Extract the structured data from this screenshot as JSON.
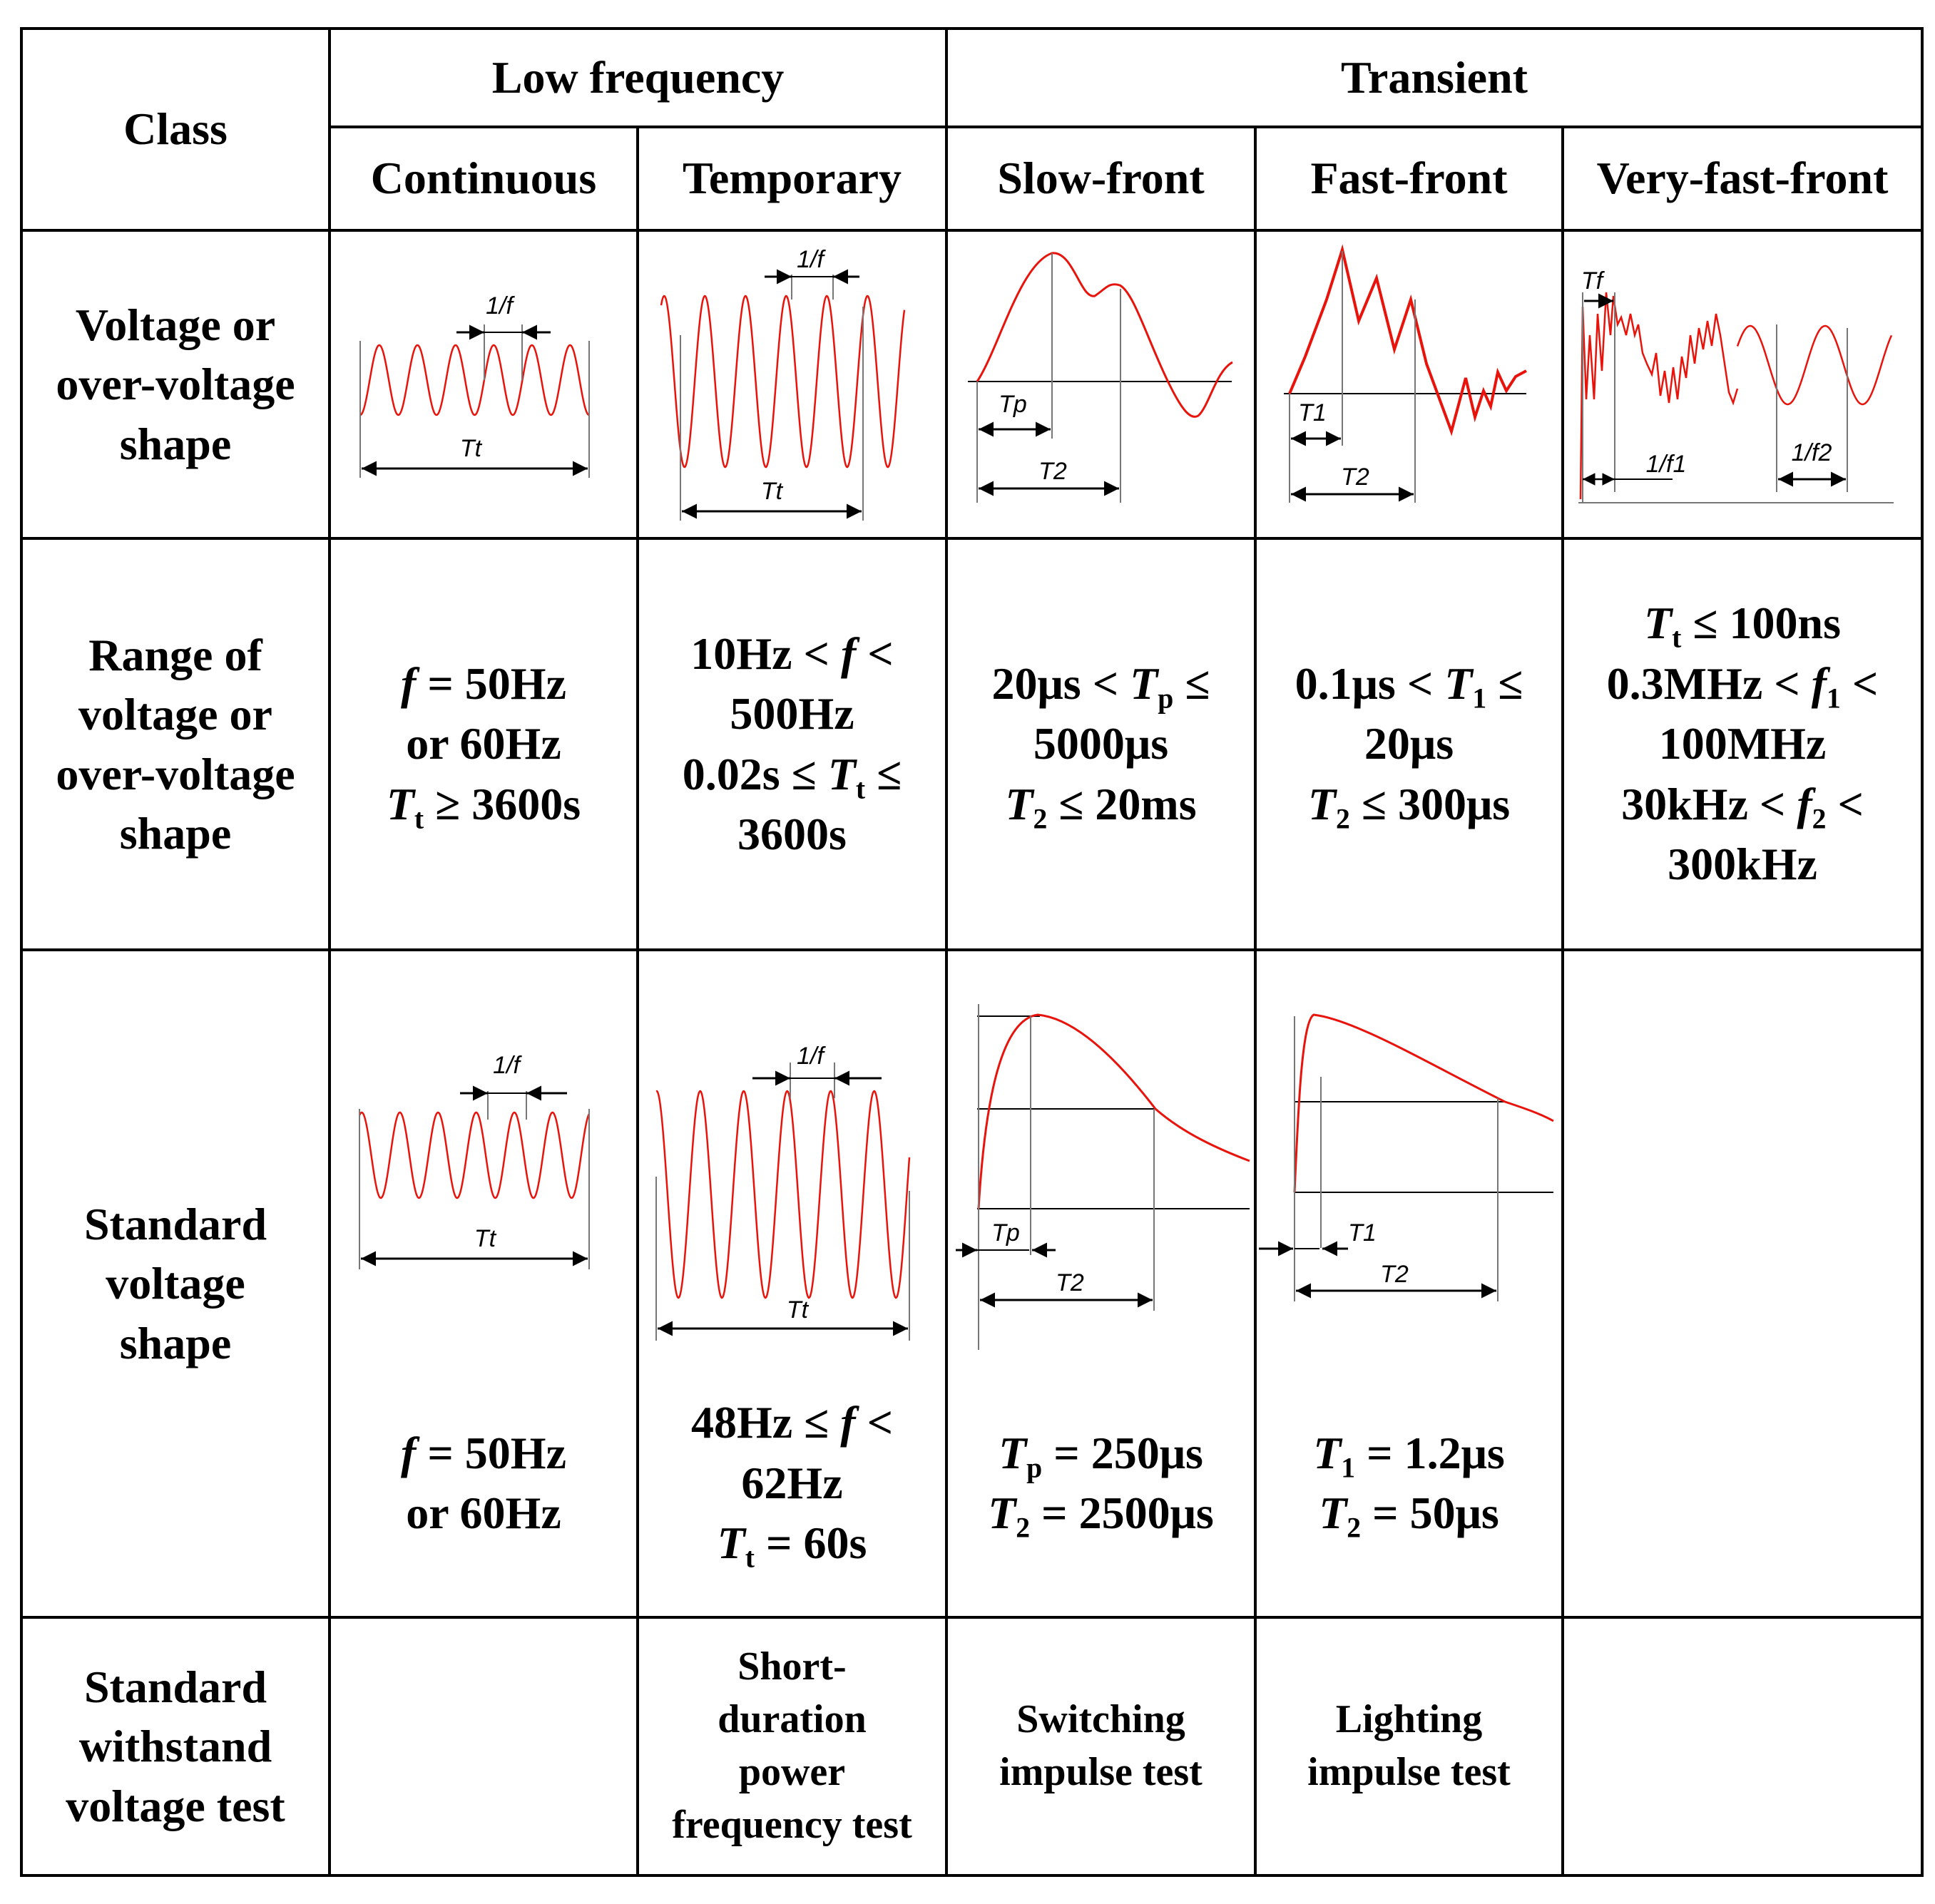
{
  "header": {
    "class": "Class",
    "low_frequency": "Low frequency",
    "transient": "Transient",
    "continuous": "Continuous",
    "temporary": "Temporary",
    "slow_front": "Slow-front",
    "fast_front": "Fast-front",
    "very_fast_front": "Very-fast-front"
  },
  "rows": {
    "voltage_shape": [
      "Voltage or",
      "over-voltage",
      "shape"
    ],
    "range_shape": [
      "Range of",
      "voltage or",
      "over-voltage",
      "shape"
    ],
    "standard_shape": [
      "Standard",
      "voltage",
      "shape"
    ],
    "standard_test": [
      "Standard",
      "withstand",
      "voltage test"
    ]
  },
  "labels": {
    "one_over_f": "1/f",
    "Tt": "Tt",
    "Tp": "Tp",
    "T1": "T1",
    "T2": "T2",
    "Tf": "Tf",
    "one_over_f1": "1/f1",
    "one_over_f2": "1/f2"
  },
  "ranges": {
    "continuous": {
      "f": "f",
      "f_rest": " = 50Hz",
      "alt": "or 60Hz",
      "T": "T",
      "t": "t",
      "t_rest": " ≥ 3600s"
    },
    "temporary": {
      "l1a": "10Hz < ",
      "f": "f",
      "l1b": " <",
      "l2": "500Hz",
      "l3a": "0.02s ≤ ",
      "T": "T",
      "t": "t",
      "l3b": " ≤",
      "l4": "3600s"
    },
    "slow_front": {
      "l1a": "20μs < ",
      "T": "T",
      "p": "p",
      "l1b": " ≤",
      "l2": "5000μs",
      "T2": "T",
      "two": "2",
      "l3b": " ≤ 20ms"
    },
    "fast_front": {
      "l1a": "0.1μs  < ",
      "T": "T",
      "one": "1",
      "l1b": " ≤",
      "l2": "20μs",
      "T2": "T",
      "two": "2",
      "l3b": " ≤ 300μs"
    },
    "very_fast_front": {
      "T": "T",
      "t": "t",
      "l1b": " ≤ 100ns",
      "l2a": "0.3MHz < ",
      "f": "f",
      "one": "1",
      "l2b": " <",
      "l3": "100MHz",
      "l4a": "30kHz < ",
      "f2": "f",
      "two": "2",
      "l4b": " <",
      "l5": "300kHz"
    }
  },
  "standard": {
    "continuous": {
      "f": "f",
      "f_rest": " = 50Hz",
      "alt": "or 60Hz"
    },
    "temporary": {
      "l1a": "48Hz ≤ ",
      "f": "f",
      "l1b": " <",
      "l2": "62Hz",
      "T": "T",
      "t": "t",
      "l3b": " = 60s"
    },
    "slow_front": {
      "T": "T",
      "p": "p",
      "l1b": " = 250μs",
      "T2": "T",
      "two": "2",
      "l2b": " = 2500μs"
    },
    "fast_front": {
      "T": "T",
      "one": "1",
      "l1b": " = 1.2μs",
      "T2": "T",
      "two": "2",
      "l2b": " = 50μs"
    }
  },
  "tests": {
    "temporary": [
      "Short-",
      "duration",
      "power",
      "frequency test"
    ],
    "slow_front": [
      "Switching",
      "impulse test"
    ],
    "fast_front": [
      "Lighting",
      "impulse test"
    ]
  },
  "colors": {
    "waveform": "#e8140c",
    "grid": "#000000"
  }
}
